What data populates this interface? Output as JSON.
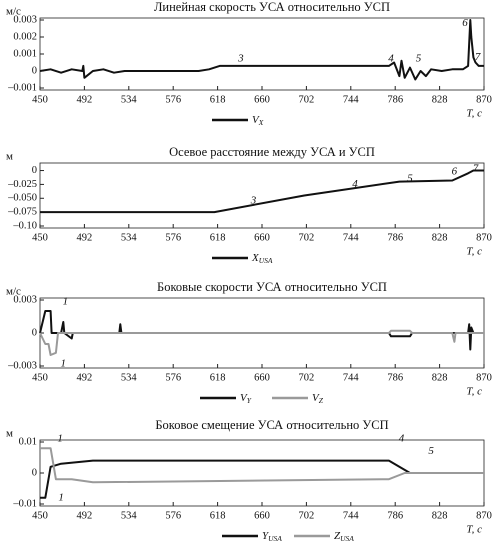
{
  "chart_data": [
    {
      "type": "line",
      "title": "Линейная скорость УСА относительно УСП",
      "ylabel": "м/с",
      "xlabel": "T, с",
      "xlim": [
        450,
        870
      ],
      "xticks": [
        450,
        492,
        534,
        576,
        618,
        660,
        702,
        744,
        786,
        828,
        870
      ],
      "ylim": [
        -0.001,
        0.003
      ],
      "yticks": [
        {
          "value": -0.001,
          "label": "–0.001"
        },
        0,
        0.001,
        0.002,
        0.003
      ],
      "annotations": [
        "3",
        "4",
        "5",
        "6",
        "7"
      ],
      "series": [
        {
          "name": "V",
          "name_sub": "X",
          "color": "#111111",
          "x": [
            450,
            460,
            470,
            480,
            490,
            491,
            492,
            500,
            510,
            520,
            530,
            540,
            560,
            580,
            600,
            610,
            620,
            630,
            650,
            700,
            750,
            780,
            785,
            790,
            792,
            795,
            800,
            805,
            810,
            815,
            820,
            830,
            840,
            850,
            855,
            857,
            858,
            860,
            862,
            865,
            870
          ],
          "values": [
            0,
            0.0001,
            -0.0001,
            0.0001,
            0,
            0.0003,
            -0.0004,
            0,
            0.0001,
            -0.0001,
            0,
            0,
            0,
            0,
            0,
            0.0001,
            0.0003,
            0.0003,
            0.0003,
            0.0003,
            0.0003,
            0.0003,
            0.0005,
            -0.0003,
            0.0006,
            -0.0004,
            0.0002,
            -0.0005,
            0,
            -0.0003,
            0.0001,
            0,
            0.0001,
            0.0001,
            0.0003,
            0.003,
            0.002,
            0.0008,
            0.0005,
            0.0003,
            0.0003
          ]
        }
      ]
    },
    {
      "type": "line",
      "title": "Осевое расстояние между УСА и УСП",
      "ylabel": "м",
      "xlabel": "T, с",
      "xlim": [
        450,
        870
      ],
      "xticks": [
        450,
        492,
        534,
        576,
        618,
        660,
        702,
        744,
        786,
        828,
        870
      ],
      "ylim": [
        -0.1,
        0.01
      ],
      "yticks": [
        {
          "value": -0.1,
          "label": "–0.10"
        },
        {
          "value": -0.075,
          "label": "–0.075"
        },
        {
          "value": -0.05,
          "label": "–0.050"
        },
        {
          "value": -0.025,
          "label": "–0.025"
        },
        0
      ],
      "annotations": [
        "3",
        "4",
        "5",
        "6",
        "7"
      ],
      "series": [
        {
          "name": "X",
          "name_sub": "USA",
          "color": "#111111",
          "x": [
            450,
            615,
            700,
            790,
            840,
            855,
            860,
            870
          ],
          "values": [
            -0.075,
            -0.075,
            -0.045,
            -0.02,
            -0.018,
            -0.005,
            0,
            0
          ]
        }
      ]
    },
    {
      "type": "line",
      "title": "Боковые скорости УСА относительно УСП",
      "ylabel": "м/с",
      "xlabel": "T, с",
      "xlim": [
        450,
        870
      ],
      "xticks": [
        450,
        492,
        534,
        576,
        618,
        660,
        702,
        744,
        786,
        828,
        870
      ],
      "ylim": [
        -0.003,
        0.003
      ],
      "yticks": [
        {
          "value": -0.003,
          "label": "–0.003"
        },
        0,
        0.003
      ],
      "annotations": [
        "1",
        "1"
      ],
      "series": [
        {
          "name": "V",
          "name_sub": "Y",
          "color": "#111111",
          "x": [
            450,
            455,
            460,
            461,
            470,
            472,
            473,
            480,
            481,
            525,
            526,
            527,
            600,
            780,
            782,
            800,
            802,
            855,
            856,
            857,
            858,
            860,
            870
          ],
          "values": [
            0,
            0.002,
            0.002,
            0,
            0,
            0.001,
            0,
            -0.0005,
            0,
            0,
            0.0008,
            0,
            0,
            0,
            -0.0003,
            -0.0003,
            0,
            0,
            0.0008,
            -0.0015,
            0.0005,
            0,
            0
          ]
        },
        {
          "name": "V",
          "name_sub": "Z",
          "color": "#9a9a9a",
          "x": [
            450,
            455,
            458,
            460,
            465,
            467,
            500,
            780,
            782,
            800,
            802,
            840,
            842,
            843,
            870
          ],
          "values": [
            0,
            -0.001,
            -0.001,
            -0.002,
            -0.0018,
            0,
            0,
            0,
            0.0002,
            0.0002,
            0,
            0,
            -0.0008,
            0,
            0
          ]
        }
      ]
    },
    {
      "type": "line",
      "title": "Боковое смещение УСА относительно УСП",
      "ylabel": "м",
      "xlabel": "T, с",
      "xlim": [
        450,
        870
      ],
      "xticks": [
        450,
        492,
        534,
        576,
        618,
        660,
        702,
        744,
        786,
        828,
        870
      ],
      "ylim": [
        -0.01,
        0.01
      ],
      "yticks": [
        {
          "value": -0.01,
          "label": "–0.01"
        },
        0,
        0.01
      ],
      "annotations": [
        "1",
        "1",
        "4",
        "5"
      ],
      "series": [
        {
          "name": "Y",
          "name_sub": "USA",
          "color": "#111111",
          "x": [
            450,
            455,
            460,
            470,
            500,
            780,
            800,
            870
          ],
          "values": [
            -0.008,
            -0.008,
            0.002,
            0.003,
            0.004,
            0.004,
            0,
            0
          ]
        },
        {
          "name": "Z",
          "name_sub": "USA",
          "color": "#9a9a9a",
          "x": [
            450,
            460,
            465,
            480,
            500,
            780,
            795,
            870
          ],
          "values": [
            0.008,
            0.008,
            -0.002,
            -0.002,
            -0.003,
            -0.002,
            0,
            0
          ]
        }
      ]
    }
  ]
}
